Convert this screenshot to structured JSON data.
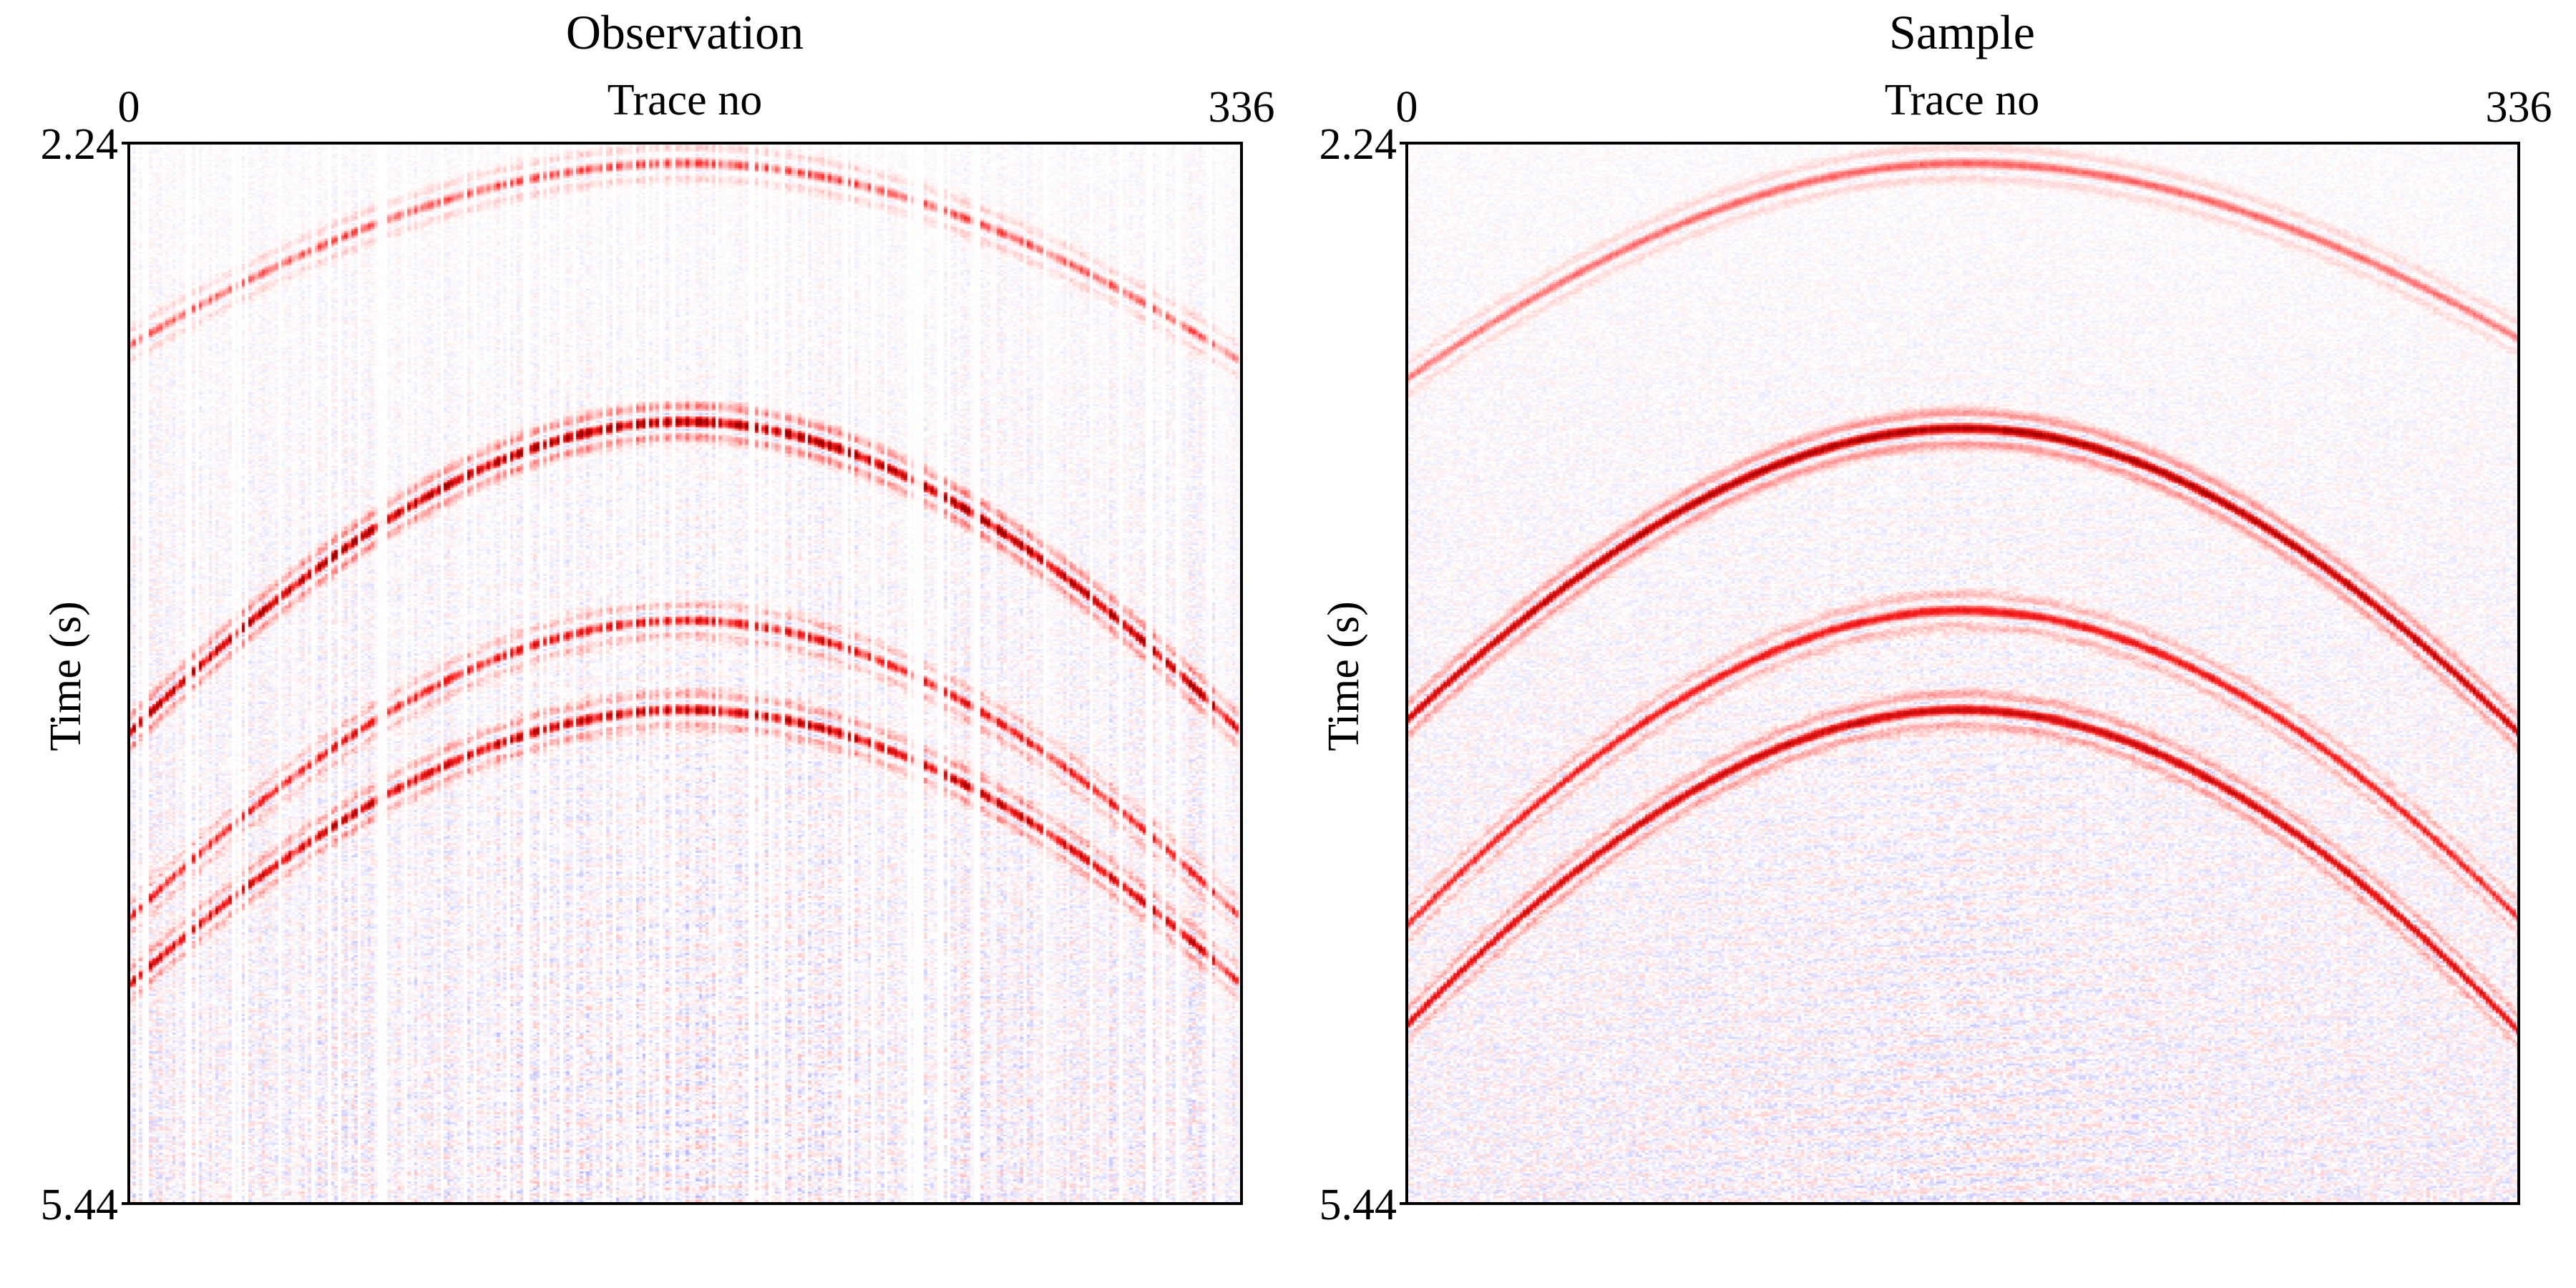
{
  "chart_data": [
    {
      "type": "heatmap",
      "title": "Observation",
      "xlabel": "Trace no",
      "ylabel": "Time (s)",
      "x_ticks": [
        "0",
        "336"
      ],
      "y_ticks": [
        "2.24",
        "5.44"
      ],
      "xlim": [
        0,
        336
      ],
      "ylim": [
        2.24,
        5.44
      ],
      "y_inverted": true,
      "colormap": [
        "#0000a0",
        "#2020ff",
        "#ffffff",
        "#ff2020",
        "#a00000"
      ],
      "events": [
        {
          "apex_trace": 168,
          "apex_time": 2.3,
          "flank_time_left": 2.85,
          "flank_time_right": 2.9,
          "amplitude": 0.35
        },
        {
          "apex_trace": 168,
          "apex_time": 3.08,
          "flank_time_left": 4.02,
          "flank_time_right": 4.02,
          "amplitude": 0.95
        },
        {
          "apex_trace": 168,
          "apex_time": 3.68,
          "flank_time_left": 4.58,
          "flank_time_right": 4.58,
          "amplitude": 0.55
        },
        {
          "apex_trace": 168,
          "apex_time": 3.95,
          "flank_time_left": 4.78,
          "flank_time_right": 4.78,
          "amplitude": 0.75
        }
      ],
      "missing_traces": true
    },
    {
      "type": "heatmap",
      "title": "Sample",
      "xlabel": "Trace no",
      "ylabel": "Time (s)",
      "x_ticks": [
        "0",
        "336"
      ],
      "y_ticks": [
        "2.24",
        "5.44"
      ],
      "xlim": [
        0,
        336
      ],
      "ylim": [
        2.24,
        5.44
      ],
      "y_inverted": true,
      "colormap": [
        "#0000a0",
        "#2020ff",
        "#ffffff",
        "#ff2020",
        "#a00000"
      ],
      "events": [
        {
          "apex_trace": 168,
          "apex_time": 2.3,
          "flank_time_left": 2.95,
          "flank_time_right": 2.83,
          "amplitude": 0.35
        },
        {
          "apex_trace": 168,
          "apex_time": 3.1,
          "flank_time_left": 3.98,
          "flank_time_right": 4.02,
          "amplitude": 0.95
        },
        {
          "apex_trace": 168,
          "apex_time": 3.65,
          "flank_time_left": 4.6,
          "flank_time_right": 4.58,
          "amplitude": 0.6
        },
        {
          "apex_trace": 168,
          "apex_time": 3.95,
          "flank_time_left": 4.9,
          "flank_time_right": 4.92,
          "amplitude": 0.8
        }
      ],
      "missing_traces": false
    }
  ]
}
